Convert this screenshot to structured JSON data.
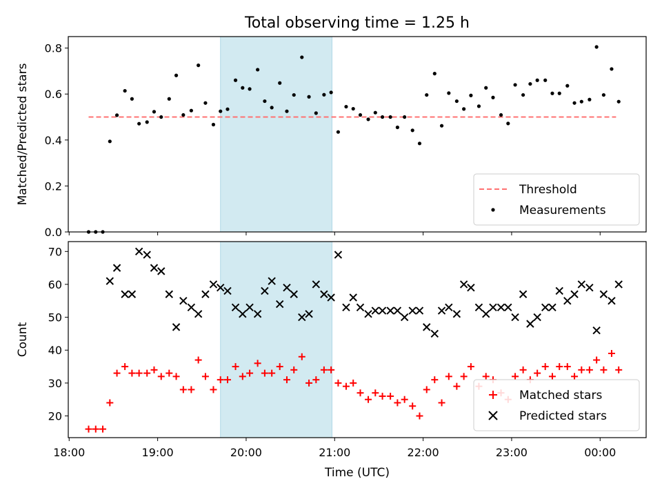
{
  "figure": {
    "title": "Total observing time = 1.25 h",
    "xlabel": "Time (UTC)",
    "x_ticks": [
      "18:00",
      "19:00",
      "20:00",
      "21:00",
      "22:00",
      "23:00",
      "00:00"
    ],
    "x_tick_hours": [
      18,
      19,
      20,
      21,
      22,
      23,
      24
    ],
    "x_range_hours": [
      17.99,
      24.52
    ],
    "shaded_interval_hours": [
      19.71,
      20.97
    ],
    "shade_color": "#add8e6"
  },
  "chart_data": [
    {
      "type": "scatter",
      "ylabel": "Matched/Predicted stars",
      "ylim": [
        0.0,
        0.85
      ],
      "y_ticks": [
        0.0,
        0.2,
        0.4,
        0.6,
        0.8
      ],
      "legend_position": "lower right",
      "threshold": {
        "name": "Threshold",
        "value": 0.5,
        "x_start": 18.22,
        "x_end": 24.18,
        "color": "#ff7070"
      },
      "series": [
        {
          "name": "Measurements",
          "color": "#000000",
          "marker": "dot",
          "x": [
            18.22,
            18.3,
            18.38,
            18.46,
            18.54,
            18.63,
            18.71,
            18.79,
            18.88,
            18.96,
            19.04,
            19.13,
            19.21,
            19.29,
            19.38,
            19.46,
            19.54,
            19.63,
            19.71,
            19.79,
            19.88,
            19.96,
            20.04,
            20.13,
            20.21,
            20.29,
            20.38,
            20.46,
            20.54,
            20.63,
            20.71,
            20.79,
            20.88,
            20.96,
            21.04,
            21.13,
            21.21,
            21.29,
            21.38,
            21.46,
            21.54,
            21.63,
            21.71,
            21.79,
            21.88,
            21.96,
            22.04,
            22.13,
            22.21,
            22.29,
            22.38,
            22.46,
            22.54,
            22.63,
            22.71,
            22.79,
            22.88,
            22.96,
            23.04,
            23.13,
            23.21,
            23.29,
            23.38,
            23.46,
            23.54,
            23.63,
            23.71,
            23.79,
            23.88,
            23.96,
            24.04,
            24.13,
            24.21
          ],
          "y": [
            0.0,
            0.0,
            0.0,
            0.394,
            0.508,
            0.614,
            0.579,
            0.471,
            0.478,
            0.523,
            0.5,
            0.579,
            0.681,
            0.509,
            0.528,
            0.725,
            0.561,
            0.467,
            0.525,
            0.534,
            0.66,
            0.627,
            0.622,
            0.706,
            0.569,
            0.541,
            0.648,
            0.525,
            0.596,
            0.76,
            0.588,
            0.517,
            0.597,
            0.607,
            0.435,
            0.545,
            0.536,
            0.509,
            0.49,
            0.519,
            0.5,
            0.5,
            0.455,
            0.5,
            0.442,
            0.385,
            0.596,
            0.689,
            0.462,
            0.604,
            0.569,
            0.535,
            0.594,
            0.547,
            0.627,
            0.585,
            0.509,
            0.472,
            0.64,
            0.596,
            0.644,
            0.66,
            0.66,
            0.603,
            0.603,
            0.636,
            0.561,
            0.567,
            0.576,
            0.805,
            0.596,
            0.709,
            0.567
          ]
        }
      ]
    },
    {
      "type": "scatter",
      "ylabel": "Count",
      "ylim": [
        13.4,
        73
      ],
      "y_ticks": [
        20,
        30,
        40,
        50,
        60,
        70
      ],
      "legend_position": "lower right",
      "series": [
        {
          "name": "Matched stars",
          "color": "#ff0000",
          "marker": "plus",
          "x": [
            18.22,
            18.3,
            18.38,
            18.46,
            18.54,
            18.63,
            18.71,
            18.79,
            18.88,
            18.96,
            19.04,
            19.13,
            19.21,
            19.29,
            19.38,
            19.46,
            19.54,
            19.63,
            19.71,
            19.79,
            19.88,
            19.96,
            20.04,
            20.13,
            20.21,
            20.29,
            20.38,
            20.46,
            20.54,
            20.63,
            20.71,
            20.79,
            20.88,
            20.96,
            21.04,
            21.13,
            21.21,
            21.29,
            21.38,
            21.46,
            21.54,
            21.63,
            21.71,
            21.79,
            21.88,
            21.96,
            22.04,
            22.13,
            22.21,
            22.29,
            22.38,
            22.46,
            22.54,
            22.63,
            22.71,
            22.79,
            22.88,
            22.96,
            23.04,
            23.13,
            23.21,
            23.29,
            23.38,
            23.46,
            23.54,
            23.63,
            23.71,
            23.79,
            23.88,
            23.96,
            24.04,
            24.13,
            24.21
          ],
          "y": [
            16,
            16,
            16,
            24,
            33,
            35,
            33,
            33,
            33,
            34,
            32,
            33,
            32,
            28,
            28,
            37,
            32,
            28,
            31,
            31,
            35,
            32,
            33,
            36,
            33,
            33,
            35,
            31,
            34,
            38,
            30,
            31,
            34,
            34,
            30,
            29,
            30,
            27,
            25,
            27,
            26,
            26,
            24,
            25,
            23,
            20,
            28,
            31,
            24,
            32,
            29,
            32,
            35,
            29,
            32,
            31,
            27,
            25,
            32,
            34,
            31,
            33,
            35,
            32,
            35,
            35,
            32,
            34,
            34,
            37,
            34,
            39,
            34
          ]
        },
        {
          "name": "Predicted stars",
          "color": "#000000",
          "marker": "x",
          "x": [
            18.46,
            18.54,
            18.63,
            18.71,
            18.79,
            18.88,
            18.96,
            19.04,
            19.13,
            19.21,
            19.29,
            19.38,
            19.46,
            19.54,
            19.63,
            19.71,
            19.79,
            19.88,
            19.96,
            20.04,
            20.13,
            20.21,
            20.29,
            20.38,
            20.46,
            20.54,
            20.63,
            20.71,
            20.79,
            20.88,
            20.96,
            21.04,
            21.13,
            21.21,
            21.29,
            21.38,
            21.46,
            21.54,
            21.63,
            21.71,
            21.79,
            21.88,
            21.96,
            22.04,
            22.13,
            22.21,
            22.29,
            22.38,
            22.46,
            22.54,
            22.63,
            22.71,
            22.79,
            22.88,
            22.96,
            23.04,
            23.13,
            23.21,
            23.29,
            23.38,
            23.46,
            23.54,
            23.63,
            23.71,
            23.79,
            23.88,
            23.96,
            24.04,
            24.13,
            24.21
          ],
          "y": [
            61,
            65,
            57,
            57,
            70,
            69,
            65,
            64,
            57,
            47,
            55,
            53,
            51,
            57,
            60,
            59,
            58,
            53,
            51,
            53,
            51,
            58,
            61,
            54,
            59,
            57,
            50,
            51,
            60,
            57,
            56,
            69,
            53,
            56,
            53,
            51,
            52,
            52,
            52,
            52,
            50,
            52,
            52,
            47,
            45,
            52,
            53,
            51,
            60,
            59,
            53,
            51,
            53,
            53,
            53,
            50,
            57,
            48,
            50,
            53,
            53,
            58,
            55,
            57,
            60,
            59,
            46,
            57,
            55,
            60
          ]
        }
      ]
    }
  ]
}
